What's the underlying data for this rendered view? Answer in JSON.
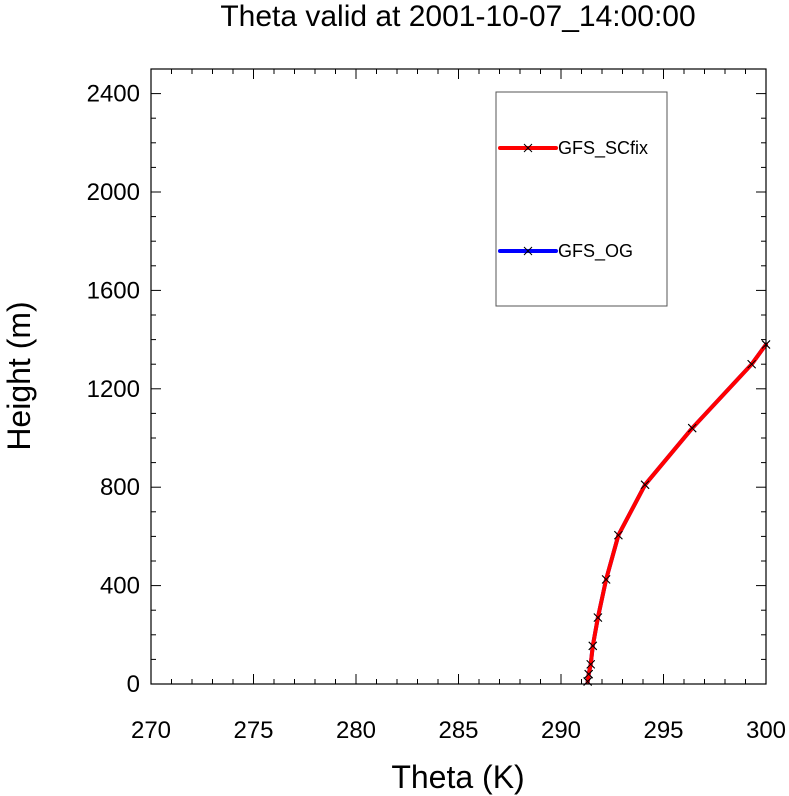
{
  "chart_data": {
    "type": "line",
    "title": "Theta valid at 2001-10-07_14:00:00",
    "xlabel": "Theta (K)",
    "ylabel": "Height (m)",
    "xlim": [
      270,
      300
    ],
    "ylim": [
      0,
      2500
    ],
    "x_ticks": [
      270,
      275,
      280,
      285,
      290,
      295,
      300
    ],
    "y_ticks": [
      0,
      400,
      800,
      1200,
      1600,
      2000,
      2400
    ],
    "grid": false,
    "legend_position": "top-right",
    "series": [
      {
        "name": "GFS_OG",
        "color": "#0000ff",
        "marker": "x",
        "theta": [
          291.3,
          291.35,
          291.45,
          291.55,
          291.8,
          292.2,
          292.8,
          294.1,
          296.4,
          299.3,
          300.0
        ],
        "height": [
          10,
          40,
          80,
          155,
          270,
          425,
          605,
          810,
          1040,
          1300,
          1380
        ]
      },
      {
        "name": "GFS_SCfix",
        "color": "#ff0000",
        "marker": "x",
        "theta": [
          291.3,
          291.35,
          291.45,
          291.55,
          291.8,
          292.2,
          292.8,
          294.1,
          296.4,
          299.3,
          300.0
        ],
        "height": [
          10,
          40,
          80,
          155,
          270,
          425,
          605,
          810,
          1040,
          1300,
          1380
        ]
      }
    ]
  }
}
